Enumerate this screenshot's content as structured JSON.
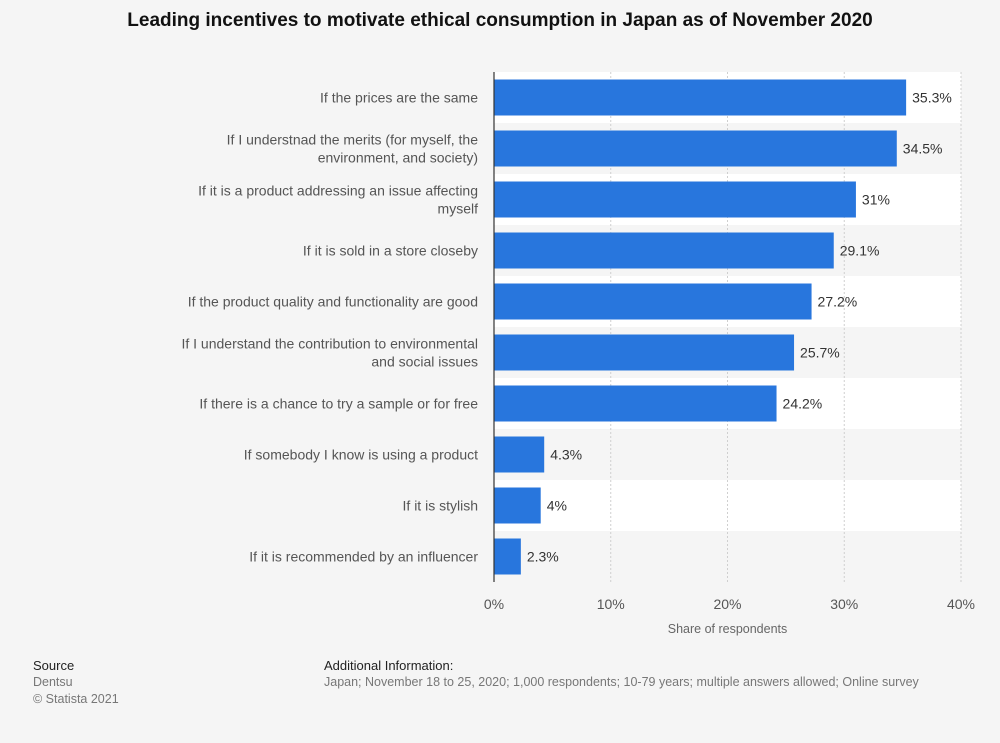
{
  "chart_data": {
    "type": "bar",
    "orientation": "horizontal",
    "title": "Leading incentives to motivate ethical consumption in Japan as of November 2020",
    "xlabel": "Share of respondents",
    "ylabel": "",
    "xlim": [
      0,
      40
    ],
    "ticks": [
      "0%",
      "10%",
      "20%",
      "30%",
      "40%"
    ],
    "tick_values": [
      0,
      10,
      20,
      30,
      40
    ],
    "grid": true,
    "categories": [
      [
        "If the prices are the same"
      ],
      [
        "If I understnad the merits (for myself, the",
        "environment, and society)"
      ],
      [
        "If it is a product addressing an issue affecting",
        "myself"
      ],
      [
        "If it is sold in a store closeby"
      ],
      [
        "If the product quality and functionality are good"
      ],
      [
        "If I understand the contribution to environmental",
        "and social issues"
      ],
      [
        "If there is a chance to try a sample or for free"
      ],
      [
        "If somebody I know is using a product"
      ],
      [
        "If it is stylish"
      ],
      [
        "If it is recommended by an influencer"
      ]
    ],
    "values": [
      35.3,
      34.5,
      31,
      29.1,
      27.2,
      25.7,
      24.2,
      4.3,
      4,
      2.3
    ],
    "value_labels": [
      "35.3%",
      "34.5%",
      "31%",
      "29.1%",
      "27.2%",
      "25.7%",
      "24.2%",
      "4.3%",
      "4%",
      "2.3%"
    ],
    "bar_color": "#2876dd"
  },
  "footer": {
    "source_heading": "Source",
    "source_name": "Dentsu",
    "copyright": "© Statista 2021",
    "info_heading": "Additional Information:",
    "info_text": "Japan; November 18 to 25, 2020; 1,000 respondents; 10-79 years; multiple answers allowed; Online survey"
  }
}
